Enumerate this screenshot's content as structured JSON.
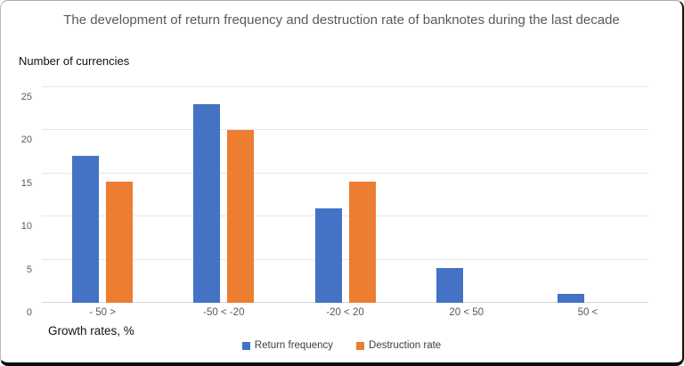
{
  "chart_data": {
    "type": "bar",
    "title": "The development of return frequency and destruction rate of banknotes during the last decade",
    "ylabel": "Number of currencies",
    "xlabel": "Growth rates, %",
    "categories": [
      "- 50 >",
      "-50 < -20",
      "-20 < 20",
      "20 < 50",
      "50 <"
    ],
    "series": [
      {
        "name": "Return frequency",
        "color": "#4472C4",
        "values": [
          17,
          23,
          11,
          4,
          1
        ]
      },
      {
        "name": "Destruction rate",
        "color": "#ED7D31",
        "values": [
          14,
          20,
          14,
          0,
          0
        ]
      }
    ],
    "ylim": [
      0,
      25
    ],
    "ytick_step": 5,
    "grid": true,
    "legend_position": "bottom",
    "gridline_color": "#e6e6e6"
  }
}
